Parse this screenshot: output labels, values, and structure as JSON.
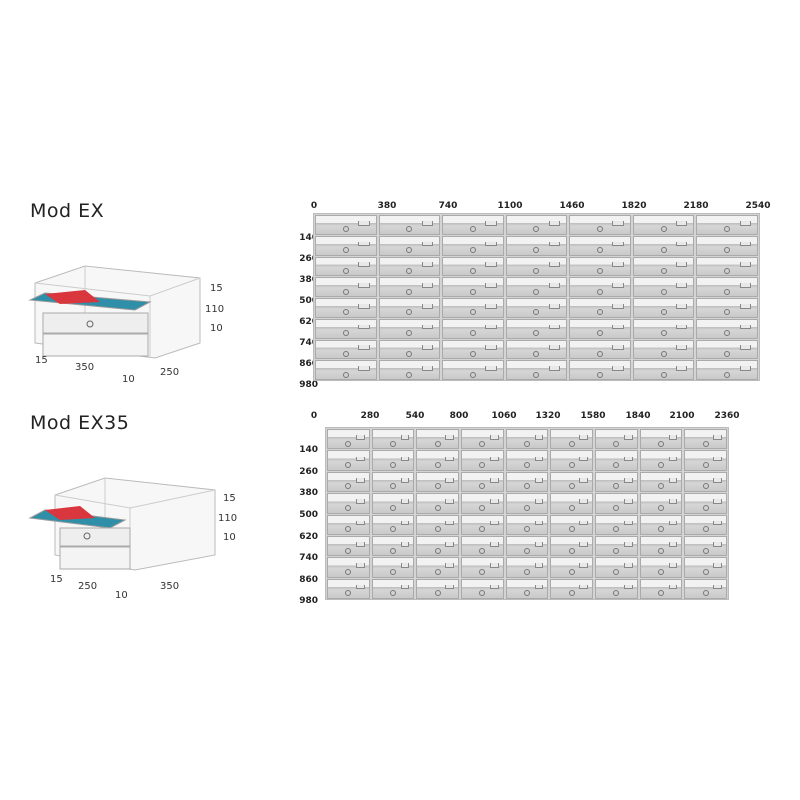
{
  "models": [
    {
      "title": "Mod EX",
      "col_labels": [
        "0",
        "380",
        "740",
        "1100",
        "1460",
        "1820",
        "2180",
        "2540"
      ],
      "row_labels": [
        "140",
        "260",
        "380",
        "500",
        "620",
        "740",
        "860",
        "980"
      ],
      "columns": 7,
      "rows": 8,
      "dims": {
        "top": "15",
        "height": "110",
        "bottom": "10",
        "left": "15",
        "width": "350",
        "gap": "10",
        "depth": "250"
      }
    },
    {
      "title": "Mod EX35",
      "col_labels": [
        "0",
        "280",
        "540",
        "800",
        "1060",
        "1320",
        "1580",
        "1840",
        "2100",
        "2360"
      ],
      "row_labels": [
        "140",
        "260",
        "380",
        "500",
        "620",
        "740",
        "860",
        "980"
      ],
      "columns": 9,
      "rows": 8,
      "dims": {
        "top": "15",
        "height": "110",
        "bottom": "10",
        "left": "15",
        "width": "250",
        "gap": "10",
        "depth": "350"
      }
    }
  ]
}
